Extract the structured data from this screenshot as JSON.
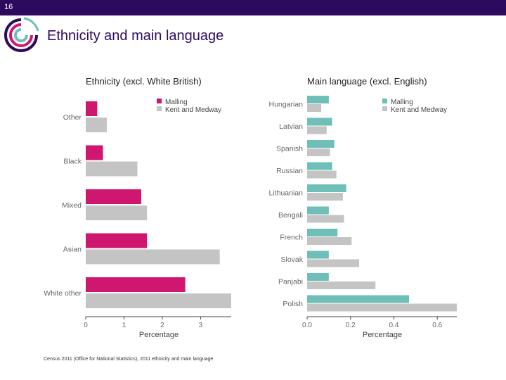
{
  "slide": {
    "number": "16",
    "title": "Ethnicity and main language"
  },
  "source": "Census 2011 (Office for National Statistics), 2011 ethnicity and main language",
  "colors": {
    "topbar": "#2e0a5f",
    "malling_left": "#d0176f",
    "malling_right": "#6dbfb8",
    "kent_medway": "#c4c4c4"
  },
  "chart_data": [
    {
      "type": "bar",
      "orientation": "horizontal",
      "title": "Ethnicity (excl. White British)",
      "xlabel": "Percentage",
      "categories": [
        "Other",
        "Black",
        "Mixed",
        "Asian",
        "White other"
      ],
      "series": [
        {
          "name": "Malling",
          "values": [
            0.3,
            0.45,
            1.45,
            1.6,
            2.6
          ]
        },
        {
          "name": "Kent and Medway",
          "values": [
            0.55,
            1.35,
            1.6,
            3.5,
            3.8
          ]
        }
      ],
      "xlim": [
        0,
        3.8
      ],
      "xticks": [
        "0",
        "1",
        "2",
        "3"
      ],
      "legend_position": "top-right",
      "grid": false
    },
    {
      "type": "bar",
      "orientation": "horizontal",
      "title": "Main language (excl. English)",
      "xlabel": "Percentage",
      "categories": [
        "Hungarian",
        "Latvian",
        "Spanish",
        "Russian",
        "Lithuanian",
        "Bengali",
        "French",
        "Slovak",
        "Panjabi",
        "Polish"
      ],
      "series": [
        {
          "name": "Malling",
          "values": [
            0.1,
            0.115,
            0.125,
            0.115,
            0.18,
            0.1,
            0.14,
            0.1,
            0.1,
            0.47
          ]
        },
        {
          "name": "Kent and Medway",
          "values": [
            0.065,
            0.09,
            0.105,
            0.135,
            0.165,
            0.17,
            0.205,
            0.24,
            0.315,
            0.69
          ]
        }
      ],
      "xlim": [
        0,
        0.69
      ],
      "xticks": [
        "0.0",
        "0.2",
        "0.4",
        "0.6"
      ],
      "legend_position": "top-right",
      "grid": false
    }
  ]
}
